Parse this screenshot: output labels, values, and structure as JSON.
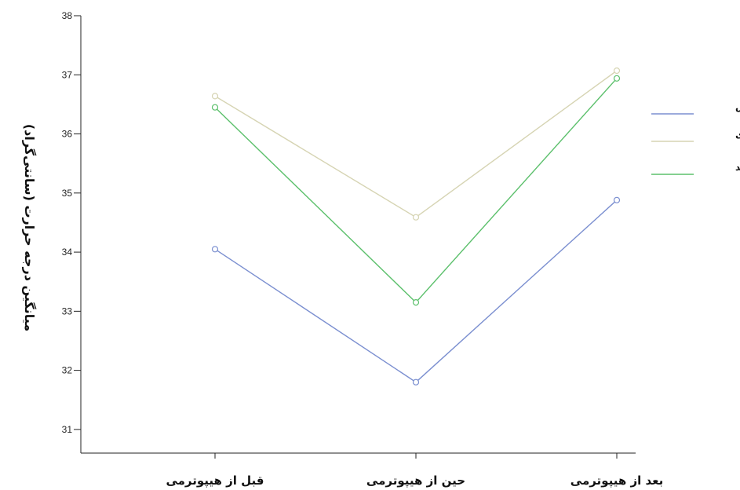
{
  "chart_data": {
    "type": "line",
    "title": "",
    "xlabel": "",
    "ylabel": "میانگین درجه حرارت (سانتی‌گراد)",
    "categories": [
      "قبل از هیپوترمی",
      "حین از هیپوترمی",
      "بعد از هیپوترمی"
    ],
    "ylim": [
      30.6,
      38
    ],
    "yticks": [
      31,
      32,
      33,
      34,
      35,
      36,
      37,
      38
    ],
    "grid": false,
    "legend_position": "right",
    "series": [
      {
        "name": "گوش",
        "color": "#7b8fd0",
        "values": [
          34.05,
          31.8,
          34.88
        ]
      },
      {
        "name": "مری",
        "color": "#d6d4b3",
        "values": [
          36.64,
          34.59,
          37.07
        ]
      },
      {
        "name": "مقعد",
        "color": "#5cc06c",
        "values": [
          36.45,
          33.15,
          36.94
        ]
      }
    ]
  }
}
